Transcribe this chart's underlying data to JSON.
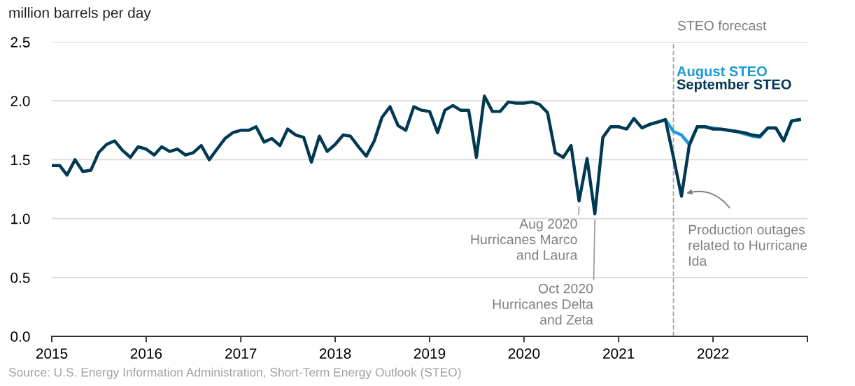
{
  "chart_data": {
    "type": "line",
    "ylabel": "million barrels per day",
    "x": [
      "2015-01",
      "2015-02",
      "2015-03",
      "2015-04",
      "2015-05",
      "2015-06",
      "2015-07",
      "2015-08",
      "2015-09",
      "2015-10",
      "2015-11",
      "2015-12",
      "2016-01",
      "2016-02",
      "2016-03",
      "2016-04",
      "2016-05",
      "2016-06",
      "2016-07",
      "2016-08",
      "2016-09",
      "2016-10",
      "2016-11",
      "2016-12",
      "2017-01",
      "2017-02",
      "2017-03",
      "2017-04",
      "2017-05",
      "2017-06",
      "2017-07",
      "2017-08",
      "2017-09",
      "2017-10",
      "2017-11",
      "2017-12",
      "2018-01",
      "2018-02",
      "2018-03",
      "2018-04",
      "2018-05",
      "2018-06",
      "2018-07",
      "2018-08",
      "2018-09",
      "2018-10",
      "2018-11",
      "2018-12",
      "2019-01",
      "2019-02",
      "2019-03",
      "2019-04",
      "2019-05",
      "2019-06",
      "2019-07",
      "2019-08",
      "2019-09",
      "2019-10",
      "2019-11",
      "2019-12",
      "2020-01",
      "2020-02",
      "2020-03",
      "2020-04",
      "2020-05",
      "2020-06",
      "2020-07",
      "2020-08",
      "2020-09",
      "2020-10",
      "2020-11",
      "2020-12",
      "2021-01",
      "2021-02",
      "2021-03",
      "2021-04",
      "2021-05",
      "2021-06",
      "2021-07",
      "2021-08",
      "2021-09",
      "2021-10",
      "2021-11",
      "2021-12",
      "2022-01",
      "2022-02",
      "2022-03",
      "2022-04",
      "2022-05",
      "2022-06",
      "2022-07",
      "2022-08",
      "2022-09",
      "2022-10",
      "2022-11",
      "2022-12"
    ],
    "series": [
      {
        "name": "August STEO",
        "color": "#1e9bd7",
        "x": [
          "2021-05",
          "2021-06",
          "2021-07",
          "2021-08",
          "2021-09",
          "2021-10",
          "2021-11",
          "2021-12",
          "2022-01",
          "2022-02",
          "2022-03",
          "2022-04",
          "2022-05",
          "2022-06",
          "2022-07",
          "2022-08",
          "2022-09",
          "2022-10",
          "2022-11",
          "2022-12"
        ],
        "values": [
          1.8,
          1.82,
          1.84,
          1.74,
          1.71,
          1.63,
          1.78,
          1.78,
          1.77,
          1.76,
          1.75,
          1.74,
          1.72,
          1.7,
          1.69,
          1.77,
          1.77,
          1.66,
          1.83,
          1.84
        ]
      },
      {
        "name": "September STEO",
        "color": "#003953",
        "values": [
          1.45,
          1.45,
          1.37,
          1.5,
          1.4,
          1.41,
          1.56,
          1.63,
          1.66,
          1.58,
          1.52,
          1.61,
          1.59,
          1.54,
          1.61,
          1.57,
          1.59,
          1.54,
          1.56,
          1.62,
          1.5,
          1.59,
          1.68,
          1.73,
          1.75,
          1.75,
          1.78,
          1.65,
          1.68,
          1.62,
          1.76,
          1.71,
          1.69,
          1.48,
          1.7,
          1.57,
          1.63,
          1.71,
          1.7,
          1.61,
          1.53,
          1.66,
          1.86,
          1.95,
          1.79,
          1.75,
          1.95,
          1.92,
          1.91,
          1.73,
          1.92,
          1.96,
          1.92,
          1.92,
          1.52,
          2.04,
          1.91,
          1.91,
          1.99,
          1.98,
          1.98,
          1.99,
          1.97,
          1.9,
          1.56,
          1.52,
          1.62,
          1.15,
          1.51,
          1.04,
          1.69,
          1.78,
          1.78,
          1.76,
          1.85,
          1.77,
          1.8,
          1.82,
          1.84,
          1.52,
          1.19,
          1.62,
          1.78,
          1.78,
          1.76,
          1.76,
          1.75,
          1.74,
          1.73,
          1.71,
          1.7,
          1.77,
          1.77,
          1.66,
          1.83,
          1.84
        ]
      }
    ],
    "xlim": [
      "2015-01",
      "2023-01"
    ],
    "xticks": [
      {
        "value": "2015-01",
        "label": "2015"
      },
      {
        "value": "2016-01",
        "label": "2016"
      },
      {
        "value": "2017-01",
        "label": "2017"
      },
      {
        "value": "2018-01",
        "label": "2018"
      },
      {
        "value": "2019-01",
        "label": "2019"
      },
      {
        "value": "2020-01",
        "label": "2020"
      },
      {
        "value": "2021-01",
        "label": "2021"
      },
      {
        "value": "2022-01",
        "label": "2022"
      },
      {
        "value": "2023-01",
        "label": null
      }
    ],
    "ylim": [
      0,
      2.5
    ],
    "yticks": [
      {
        "value": 0,
        "label": "0.0"
      },
      0.5,
      {
        "value": 1,
        "label": "1.0"
      },
      1.5,
      {
        "value": 2,
        "label": "2.0"
      },
      2.5
    ],
    "grid": "y",
    "legend": false,
    "marker": "none",
    "line_style": "solid",
    "ref_lines": [
      {
        "axis": "x",
        "value": "2021-08",
        "label": "STEO forecast",
        "color": "#a6a6a6",
        "line_style": "dashed"
      }
    ],
    "annotations": [
      {
        "text": "Aug 2020\nHurricanes Marco\nand Laura",
        "x": "2020-08",
        "y": 1.15
      },
      {
        "text": "Oct 2020\nHurricanes Delta\nand Zeta",
        "x": "2020-10",
        "y": 1.04
      },
      {
        "text": "Production outages\nrelated to Hurricane\nIda",
        "x": "2021-09",
        "y": 1.19
      },
      "Source: U.S. Energy Information Administration, Short-Term Energy Outlook (STEO)"
    ]
  }
}
